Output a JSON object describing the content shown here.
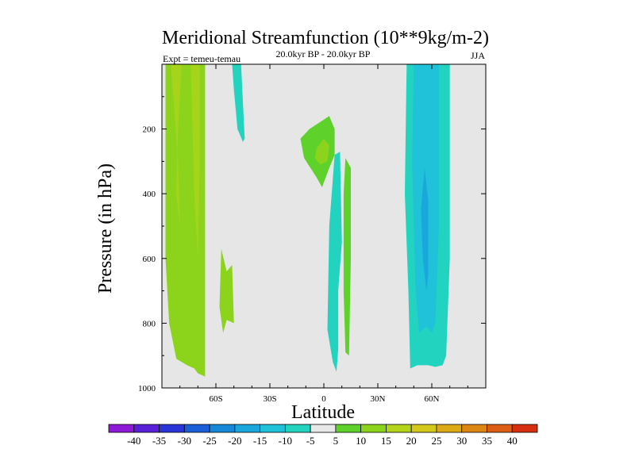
{
  "chart_data": {
    "type": "contour",
    "title": "Meridional Streamfunction (10**9kg/m-2)",
    "subtitle": "20.0kyr BP - 20.0kyr BP",
    "experiment_label": "Expt = temeu-temau",
    "season": "JJA",
    "xlabel": "Latitude",
    "ylabel": "Pressure (in hPa)",
    "xlim": [
      -90,
      90
    ],
    "ylim": [
      1000,
      0
    ],
    "x_ticks": [
      {
        "value": -60,
        "label": "60S"
      },
      {
        "value": -30,
        "label": "30S"
      },
      {
        "value": 0,
        "label": "0"
      },
      {
        "value": 30,
        "label": "30N"
      },
      {
        "value": 60,
        "label": "60N"
      }
    ],
    "y_ticks": [
      {
        "value": 200,
        "label": "200"
      },
      {
        "value": 400,
        "label": "400"
      },
      {
        "value": 600,
        "label": "600"
      },
      {
        "value": 800,
        "label": "800"
      },
      {
        "value": 1000,
        "label": "1000"
      }
    ],
    "background_color": "#e6e6e6",
    "colorbar": {
      "boundaries": [
        -40,
        -35,
        -30,
        -25,
        -20,
        -15,
        -10,
        -5,
        5,
        10,
        15,
        20,
        25,
        30,
        35,
        40
      ],
      "labels": [
        "-40",
        "-35",
        "-30",
        "-25",
        "-20",
        "-15",
        "-10",
        "-5",
        "5",
        "10",
        "15",
        "20",
        "25",
        "30",
        "35",
        "40"
      ],
      "colors": [
        "#8c1ad6",
        "#5a20d8",
        "#2a35d8",
        "#1a5ed8",
        "#1788d8",
        "#1aa8dc",
        "#1fc2d8",
        "#22d4c0",
        "#e8e8e8",
        "#5ed22a",
        "#8cd41c",
        "#b4d41a",
        "#d4c81a",
        "#dcaa14",
        "#dc8614",
        "#dc5e14",
        "#d82e10"
      ]
    },
    "regions": [
      {
        "name": "sh-positive-band",
        "level": 10,
        "color": "#8cd41c",
        "polygon": [
          [
            -88,
            0
          ],
          [
            -66,
            0
          ],
          [
            -66,
            965
          ],
          [
            -70,
            955
          ],
          [
            -72,
            940
          ],
          [
            -76,
            930
          ],
          [
            -82,
            910
          ],
          [
            -86,
            800
          ],
          [
            -88,
            600
          ]
        ]
      },
      {
        "name": "sh-positive-core",
        "level": 15,
        "color": "#a6d41a",
        "polygon": [
          [
            -85,
            0
          ],
          [
            -79,
            0
          ],
          [
            -81,
            200
          ],
          [
            -82,
            400
          ],
          [
            -80,
            500
          ],
          [
            -81,
            300
          ]
        ]
      },
      {
        "name": "sh-positive-core-2",
        "level": 15,
        "color": "#a6d41a",
        "polygon": [
          [
            -74,
            0
          ],
          [
            -69,
            0
          ],
          [
            -69,
            300
          ],
          [
            -70,
            600
          ],
          [
            -72,
            400
          ]
        ]
      },
      {
        "name": "sh-positive-lobe",
        "level": 10,
        "color": "#8cd41c",
        "polygon": [
          [
            -57,
            570
          ],
          [
            -54,
            640
          ],
          [
            -51,
            620
          ],
          [
            -50,
            800
          ],
          [
            -54,
            790
          ],
          [
            -56,
            830
          ],
          [
            -58,
            750
          ]
        ]
      },
      {
        "name": "sh-midlat-negative",
        "level": -10,
        "color": "#22d4c0",
        "polygon": [
          [
            -51,
            0
          ],
          [
            -46,
            0
          ],
          [
            -44,
            230
          ],
          [
            -45,
            240
          ],
          [
            -48,
            200
          ],
          [
            -50,
            80
          ]
        ]
      },
      {
        "name": "tropical-positive-upper",
        "level": 5,
        "color": "#5ed22a",
        "polygon": [
          [
            -13,
            230
          ],
          [
            -8,
            200
          ],
          [
            3,
            160
          ],
          [
            6,
            200
          ],
          [
            6,
            280
          ],
          [
            3,
            320
          ],
          [
            -1,
            380
          ],
          [
            -4,
            350
          ],
          [
            -11,
            290
          ]
        ]
      },
      {
        "name": "tropical-positive-core",
        "level": 10,
        "color": "#8cd41c",
        "polygon": [
          [
            -4,
            260
          ],
          [
            0,
            230
          ],
          [
            3,
            250
          ],
          [
            2,
            300
          ],
          [
            -2,
            310
          ],
          [
            -5,
            290
          ]
        ]
      },
      {
        "name": "equatorial-negative",
        "level": -5,
        "color": "#22d4c0",
        "polygon": [
          [
            6,
            280
          ],
          [
            9,
            270
          ],
          [
            10,
            550
          ],
          [
            8,
            700
          ],
          [
            8,
            880
          ],
          [
            7,
            950
          ],
          [
            5,
            920
          ],
          [
            2,
            820
          ],
          [
            3,
            500
          ]
        ]
      },
      {
        "name": "equatorial-positive",
        "level": 5,
        "color": "#5ed22a",
        "polygon": [
          [
            12,
            290
          ],
          [
            15,
            320
          ],
          [
            15,
            600
          ],
          [
            14,
            900
          ],
          [
            12,
            890
          ],
          [
            11,
            700
          ],
          [
            11,
            400
          ]
        ]
      },
      {
        "name": "nh-negative-band",
        "level": -10,
        "color": "#22d4c0",
        "polygon": [
          [
            46,
            0
          ],
          [
            70,
            0
          ],
          [
            70,
            600
          ],
          [
            68,
            900
          ],
          [
            66,
            930
          ],
          [
            62,
            935
          ],
          [
            58,
            930
          ],
          [
            52,
            930
          ],
          [
            48,
            940
          ],
          [
            47,
            700
          ],
          [
            45,
            400
          ]
        ]
      },
      {
        "name": "nh-negative-core",
        "level": -15,
        "color": "#1fc2d8",
        "polygon": [
          [
            50,
            0
          ],
          [
            64,
            0
          ],
          [
            64,
            500
          ],
          [
            62,
            800
          ],
          [
            60,
            830
          ],
          [
            57,
            810
          ],
          [
            53,
            830
          ],
          [
            51,
            700
          ],
          [
            49,
            300
          ]
        ]
      },
      {
        "name": "nh-negative-inner",
        "level": -15,
        "color": "#1aa8dc",
        "polygon": [
          [
            56,
            320
          ],
          [
            58,
            420
          ],
          [
            58,
            650
          ],
          [
            57,
            700
          ],
          [
            55,
            600
          ],
          [
            54,
            450
          ]
        ]
      }
    ]
  }
}
